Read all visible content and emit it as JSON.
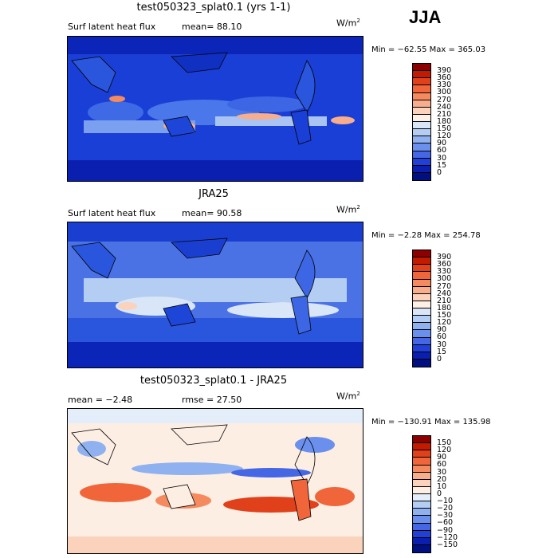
{
  "season": "JJA",
  "panels": [
    {
      "title": "test050323_splat0.1 (yrs 1-1)",
      "left_label": "Surf latent heat flux",
      "mean_label": "mean=  88.10",
      "units": "W/m",
      "units_sup": "2",
      "minmax": "Min = −62.55  Max = 365.03",
      "colorbar": {
        "labels": [
          "390",
          "360",
          "330",
          "300",
          "270",
          "240",
          "210",
          "180",
          "150",
          "120",
          "90",
          "60",
          "30",
          "15",
          "0"
        ],
        "colors": [
          "#8b0000",
          "#c41a00",
          "#e0401a",
          "#f0653a",
          "#f58a5e",
          "#f8ad8c",
          "#fbd2bc",
          "#fdf0e6",
          "#d9e6f7",
          "#b4cdf2",
          "#8fb1ef",
          "#6a8fec",
          "#4567e6",
          "#2040d8",
          "#0a1fb0",
          "#001080"
        ]
      }
    },
    {
      "title": "JRA25",
      "left_label": "Surf latent heat flux",
      "mean_label": "mean=  90.58",
      "units": "W/m",
      "units_sup": "2",
      "minmax": "Min =  −2.28  Max = 254.78",
      "colorbar": {
        "labels": [
          "390",
          "360",
          "330",
          "300",
          "270",
          "240",
          "210",
          "180",
          "150",
          "120",
          "90",
          "60",
          "30",
          "15",
          "0"
        ],
        "colors": [
          "#8b0000",
          "#c41a00",
          "#e0401a",
          "#f0653a",
          "#f58a5e",
          "#f8ad8c",
          "#fbd2bc",
          "#fdf0e6",
          "#d9e6f7",
          "#b4cdf2",
          "#8fb1ef",
          "#6a8fec",
          "#4567e6",
          "#2040d8",
          "#0a1fb0",
          "#001080"
        ]
      }
    },
    {
      "title": "test050323_splat0.1 - JRA25",
      "left_label": "mean =   −2.48",
      "mean_label": "rmse =   27.50",
      "units": "W/m",
      "units_sup": "2",
      "minmax": "Min = −130.91  Max = 135.98",
      "colorbar": {
        "labels": [
          "150",
          "120",
          "90",
          "60",
          "30",
          "20",
          "10",
          "0",
          "−10",
          "−20",
          "−30",
          "−60",
          "−90",
          "−120",
          "−150"
        ],
        "colors": [
          "#8b0000",
          "#c41a00",
          "#e0401a",
          "#f0653a",
          "#f58a5e",
          "#f8ad8c",
          "#fbd2bc",
          "#fdeee4",
          "#e4eefa",
          "#b4cdf2",
          "#8fb1ef",
          "#6a8fec",
          "#4567e6",
          "#2040d8",
          "#0a1fb0",
          "#001080"
        ]
      }
    }
  ]
}
